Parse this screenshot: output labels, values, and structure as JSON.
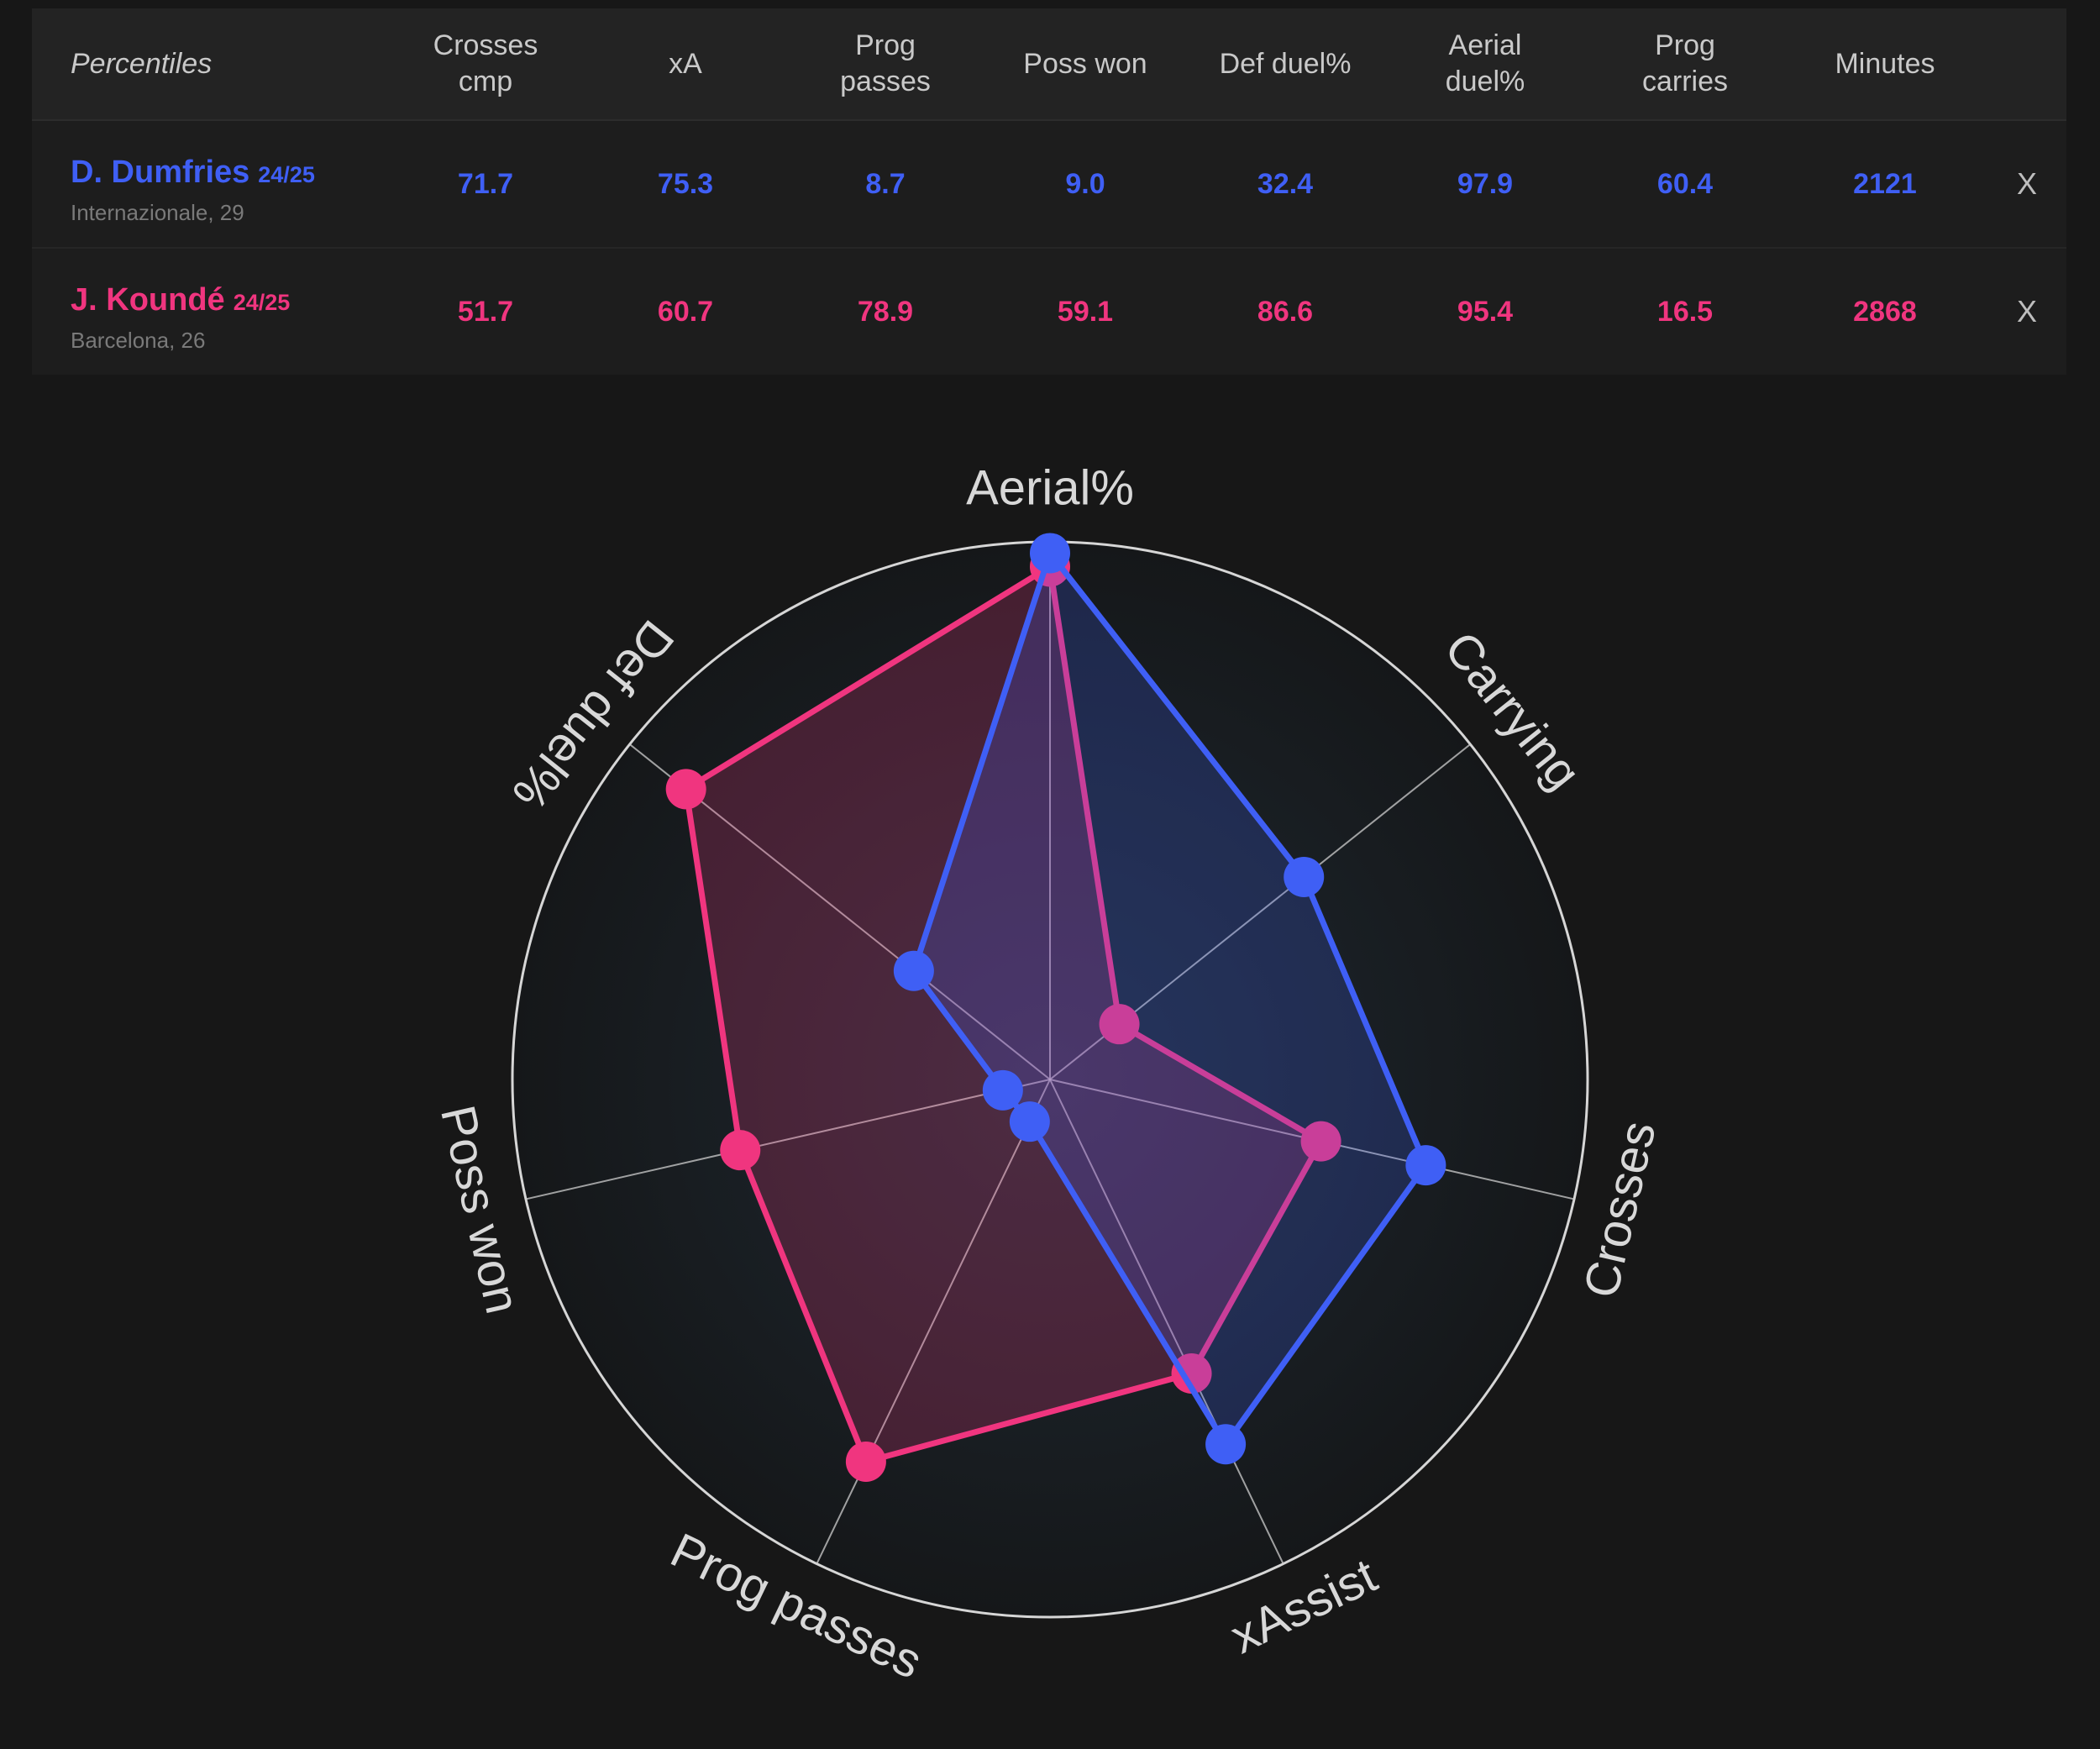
{
  "table": {
    "columns": [
      "Percentiles",
      "Crosses\ncmp",
      "xA",
      "Prog\npasses",
      "Poss won",
      "Def duel%",
      "Aerial\nduel%",
      "Prog\ncarries",
      "Minutes"
    ],
    "rows": [
      {
        "name": "D. Dumfries",
        "season": "24/25",
        "club": "Internazionale, 29",
        "values": [
          "71.7",
          "75.3",
          "8.7",
          "9.0",
          "32.4",
          "97.9",
          "60.4",
          "2121"
        ],
        "remove": "X",
        "color": "#3f5ff5"
      },
      {
        "name": "J. Koundé",
        "season": "24/25",
        "club": "Barcelona, 26",
        "values": [
          "51.7",
          "60.7",
          "78.9",
          "59.1",
          "86.6",
          "95.4",
          "16.5",
          "2868"
        ],
        "remove": "X",
        "color": "#f0357f"
      }
    ]
  },
  "chart_data": {
    "type": "radar",
    "axes": [
      "Aerial%",
      "Carrying",
      "Crosses",
      "xAssist",
      "Prog passes",
      "Poss won",
      "Def duel%"
    ],
    "range": [
      0,
      100
    ],
    "legend": "none",
    "series": [
      {
        "name": "D. Dumfries",
        "color": "#3f5ff5",
        "values": [
          97.9,
          60.4,
          71.7,
          75.3,
          8.7,
          9.0,
          32.4
        ]
      },
      {
        "name": "J. Koundé",
        "color": "#f0357f",
        "values": [
          95.4,
          16.5,
          51.7,
          60.7,
          78.9,
          59.1,
          86.6
        ]
      }
    ]
  }
}
